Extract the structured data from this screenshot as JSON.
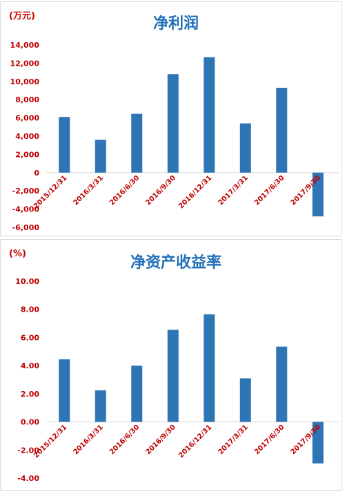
{
  "colors": {
    "bar": "#2e75b6",
    "title": "#1f6fb8",
    "labels": "#c00000",
    "zero_line": "#d9d9d9"
  },
  "chart_data": [
    {
      "type": "bar",
      "title": "净利润",
      "unit_label": "(万元)",
      "categories": [
        "2015/12/31",
        "2016/3/31",
        "2016/6/30",
        "2016/9/30",
        "2016/12/31",
        "2017/3/31",
        "2017/6/30",
        "2017/9/30"
      ],
      "values": [
        6100,
        3600,
        6450,
        10800,
        12650,
        5400,
        9300,
        -4800
      ],
      "ylim": [
        -6000,
        14000
      ],
      "yticks": [
        14000,
        12000,
        10000,
        8000,
        6000,
        4000,
        2000,
        0,
        -2000,
        -4000,
        -6000
      ],
      "ytick_labels": [
        "14,000",
        "12,000",
        "10,000",
        "8,000",
        "6,000",
        "4,000",
        "2,000",
        "0",
        "-2,000",
        "-4,000",
        "-6,000"
      ],
      "grid": false,
      "legend": "none"
    },
    {
      "type": "bar",
      "title": "净资产收益率",
      "unit_label": "(%)",
      "categories": [
        "2015/12/31",
        "2016/3/31",
        "2016/6/30",
        "2016/9/30",
        "2016/12/31",
        "2017/3/31",
        "2017/6/30",
        "2017/9/30"
      ],
      "values": [
        4.45,
        2.25,
        4.0,
        6.55,
        7.65,
        3.1,
        5.35,
        -2.95
      ],
      "ylim": [
        -4,
        10
      ],
      "yticks": [
        10,
        8,
        6,
        4,
        2,
        0,
        -2,
        -4
      ],
      "ytick_labels": [
        "10.00",
        "8.00",
        "6.00",
        "4.00",
        "2.00",
        "0.00",
        "-2.00",
        "-4.00"
      ],
      "grid": false,
      "legend": "none"
    }
  ]
}
